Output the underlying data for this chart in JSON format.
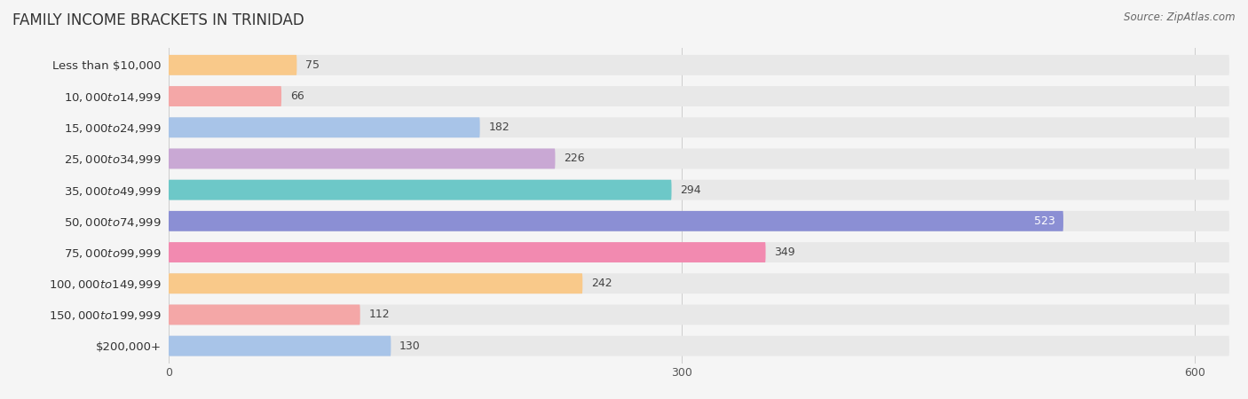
{
  "title": "FAMILY INCOME BRACKETS IN TRINIDAD",
  "source": "Source: ZipAtlas.com",
  "categories": [
    "Less than $10,000",
    "$10,000 to $14,999",
    "$15,000 to $24,999",
    "$25,000 to $34,999",
    "$35,000 to $49,999",
    "$50,000 to $74,999",
    "$75,000 to $99,999",
    "$100,000 to $149,999",
    "$150,000 to $199,999",
    "$200,000+"
  ],
  "values": [
    75,
    66,
    182,
    226,
    294,
    523,
    349,
    242,
    112,
    130
  ],
  "bar_colors": [
    "#F9C98A",
    "#F4A7A7",
    "#A8C4E8",
    "#C9A8D4",
    "#6DC8C8",
    "#8B8FD4",
    "#F28AB0",
    "#F9C98A",
    "#F4A7A7",
    "#A8C4E8"
  ],
  "xlim_max": 620,
  "xticks": [
    0,
    300,
    600
  ],
  "background_color": "#f5f5f5",
  "bar_bg_color": "#e8e8e8",
  "title_fontsize": 12,
  "label_fontsize": 9.5,
  "value_fontsize": 9,
  "source_fontsize": 8.5,
  "bar_height": 0.65
}
